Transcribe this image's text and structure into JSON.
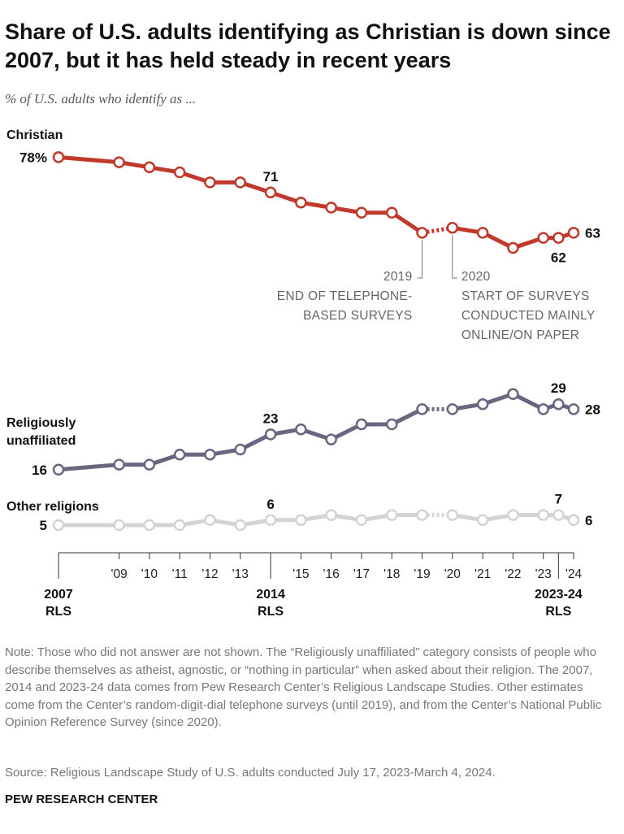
{
  "chart_data": {
    "type": "line",
    "title": "Share of U.S. adults identifying as Christian is down since 2007, but it has held steady in recent years",
    "subtitle": "% of U.S. adults who identify as ...",
    "x": [
      2007,
      2009,
      2010,
      2011,
      2012,
      2013,
      2014,
      2015,
      2016,
      2017,
      2018,
      2019,
      2020,
      2021,
      2022,
      2023,
      2023.5,
      2024
    ],
    "xlim": [
      2007,
      2024
    ],
    "ylim": [
      0,
      80
    ],
    "dotted_between": [
      2019,
      2020
    ],
    "xticks": [
      {
        "value": 2007,
        "label": "2007",
        "sublabel": "RLS"
      },
      {
        "value": 2009,
        "label": "'09"
      },
      {
        "value": 2010,
        "label": "'10"
      },
      {
        "value": 2011,
        "label": "'11"
      },
      {
        "value": 2012,
        "label": "'12"
      },
      {
        "value": 2013,
        "label": "'13"
      },
      {
        "value": 2014,
        "label": "2014",
        "sublabel": "RLS"
      },
      {
        "value": 2015,
        "label": "'15"
      },
      {
        "value": 2016,
        "label": "'16"
      },
      {
        "value": 2017,
        "label": "'17"
      },
      {
        "value": 2018,
        "label": "'18"
      },
      {
        "value": 2019,
        "label": "'19"
      },
      {
        "value": 2020,
        "label": "'20"
      },
      {
        "value": 2021,
        "label": "'21"
      },
      {
        "value": 2022,
        "label": "'22"
      },
      {
        "value": 2023,
        "label": "'23"
      },
      {
        "value": 2023.5,
        "label": "2023-24",
        "sublabel": "RLS"
      },
      {
        "value": 2024,
        "label": "'24"
      }
    ],
    "series": [
      {
        "name": "Christian",
        "color": "#c0392b",
        "values": [
          78,
          77,
          76,
          75,
          73,
          73,
          71,
          69,
          68,
          67,
          67,
          63,
          64,
          63,
          60,
          62,
          62,
          63
        ],
        "value_labels": [
          "78%",
          null,
          null,
          null,
          null,
          null,
          "71",
          null,
          null,
          null,
          null,
          null,
          null,
          null,
          null,
          null,
          "62",
          "63"
        ]
      },
      {
        "name": "Religiously unaffiliated",
        "color": "#6b6580",
        "values": [
          16,
          17,
          17,
          19,
          19,
          20,
          23,
          24,
          22,
          25,
          25,
          28,
          28,
          29,
          31,
          28,
          29,
          28
        ],
        "value_labels": [
          "16",
          null,
          null,
          null,
          null,
          null,
          "23",
          null,
          null,
          null,
          null,
          null,
          null,
          null,
          null,
          null,
          "29",
          "28"
        ]
      },
      {
        "name": "Other religions",
        "color": "#d3d3d3",
        "values": [
          5,
          5,
          5,
          5,
          6,
          5,
          6,
          6,
          7,
          6,
          7,
          7,
          7,
          6,
          7,
          7,
          7,
          6
        ],
        "value_labels": [
          "5",
          null,
          null,
          null,
          null,
          null,
          "6",
          null,
          null,
          null,
          null,
          null,
          null,
          null,
          null,
          null,
          "7",
          "6"
        ]
      }
    ],
    "annotations": [
      {
        "x": 2019,
        "lines": [
          "2019",
          "END OF TELEPHONE-",
          "BASED SURVEYS"
        ]
      },
      {
        "x": 2020,
        "lines": [
          "2020",
          "START OF SURVEYS",
          "CONDUCTED MAINLY",
          "ONLINE/ON PAPER"
        ]
      }
    ]
  },
  "note": "Note: Those who did not answer are not shown. The “Religiously unaffiliated” category consists of people who describe themselves as atheist, agnostic, or “nothing in particular” when asked about their religion. The 2007, 2014 and 2023-24 data comes from Pew Research Center’s Religious Landscape Studies. Other estimates come from the Center’s random-digit-dial telephone surveys (until 2019), and from the Center’s National Public Opinion Reference Survey (since 2020).",
  "source": "Source: Religious Landscape Study of U.S. adults conducted July 17, 2023-March 4, 2024.",
  "footer": "PEW RESEARCH CENTER"
}
